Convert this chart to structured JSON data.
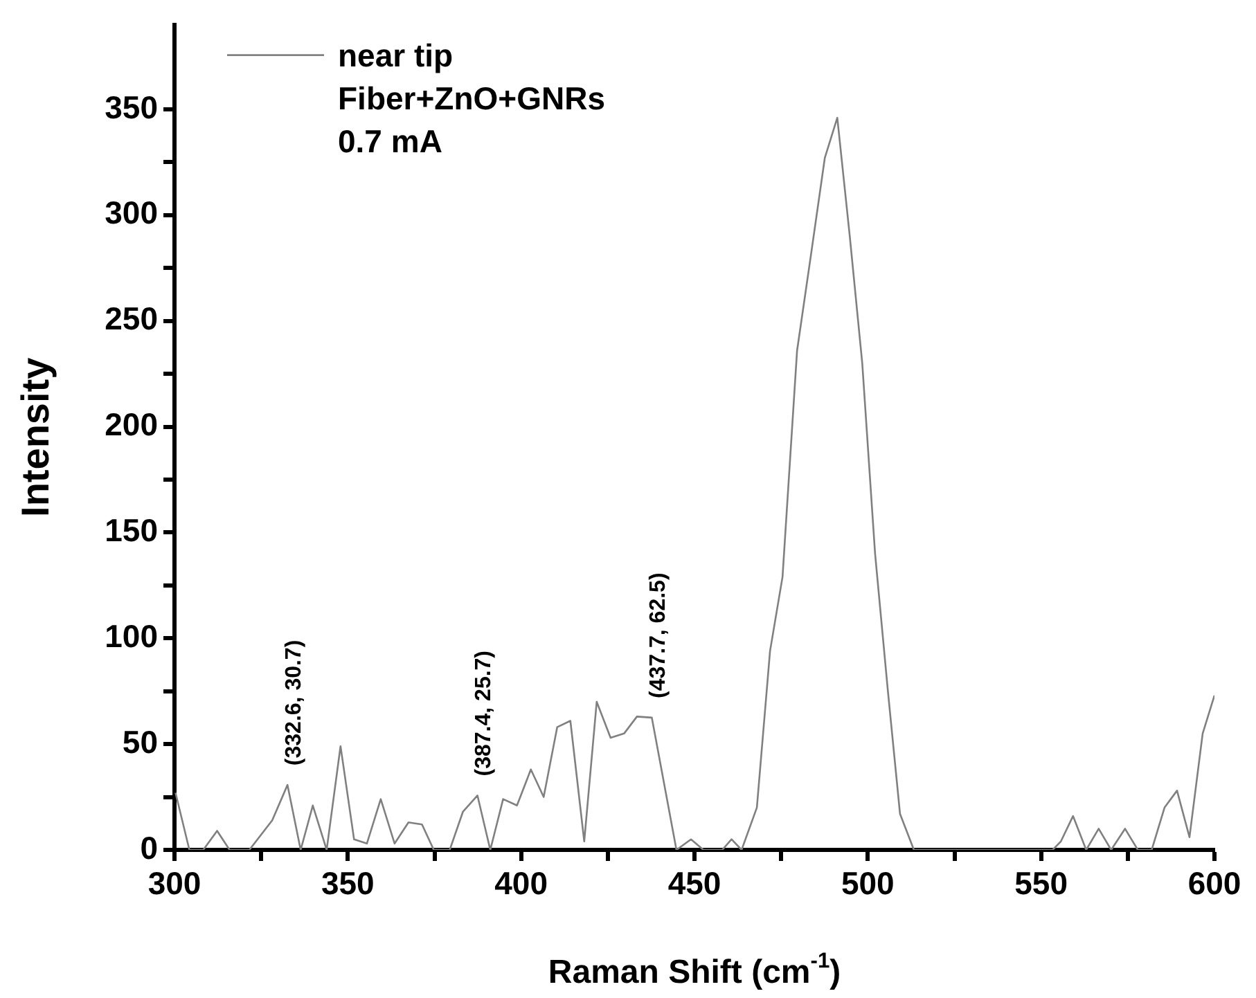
{
  "chart_data": {
    "type": "line",
    "xlabel": "Raman Shift (cm$^{-1}$)",
    "ylabel": "Intensity",
    "xlim": [
      300,
      600
    ],
    "ylim": [
      0,
      390
    ],
    "xticks": [
      300,
      {
        "value": 325,
        "label": null
      },
      350,
      {
        "value": 375,
        "label": null
      },
      400,
      {
        "value": 425,
        "label": null
      },
      450,
      {
        "value": 475,
        "label": null
      },
      500,
      {
        "value": 525,
        "label": null
      },
      550,
      {
        "value": 575,
        "label": null
      },
      600
    ],
    "yticks": [
      0,
      {
        "value": 25,
        "label": null
      },
      50,
      {
        "value": 75,
        "label": null
      },
      100,
      {
        "value": 125,
        "label": null
      },
      150,
      {
        "value": 175,
        "label": null
      },
      200,
      {
        "value": 225,
        "label": null
      },
      250,
      {
        "value": 275,
        "label": null
      },
      300,
      {
        "value": 325,
        "label": null
      },
      350
    ],
    "series": [
      {
        "name": "near tip",
        "color": "#808080",
        "x": [
          300.3,
          304.3,
          308.3,
          312.3,
          315.9,
          321.6,
          328.2,
          332.6,
          336.4,
          339.9,
          343.9,
          347.9,
          351.8,
          355.5,
          359.5,
          363.5,
          367.5,
          371.4,
          374.8,
          379.4,
          383.2,
          387.4,
          391.1,
          394.8,
          398.8,
          402.8,
          406.5,
          410.4,
          414.2,
          418.2,
          421.8,
          425.8,
          429.7,
          433.4,
          437.7,
          444.8,
          449,
          452.6,
          458,
          460.7,
          463.6,
          468,
          471.8,
          475.4,
          479.6,
          483.5,
          487.6,
          491.2,
          494.8,
          498.4,
          502.1,
          505.8,
          509.3,
          513.3,
          553.3,
          555.7,
          559.2,
          563,
          566.6,
          570.2,
          574.2,
          577.9,
          581.9,
          585.6,
          589.2,
          592.8,
          596.6,
          600
        ],
        "values": [
          27,
          0,
          0,
          9,
          0,
          0,
          14,
          30.7,
          0,
          21,
          0,
          49,
          5,
          3,
          24,
          3,
          13,
          12,
          0,
          0,
          18,
          25.7,
          0,
          24,
          21,
          38,
          25,
          58,
          61,
          4,
          70,
          53,
          55,
          63,
          62.5,
          0,
          5,
          0,
          0,
          5,
          0,
          20,
          94,
          129,
          236,
          280,
          327,
          346,
          290,
          230,
          140,
          75,
          17,
          0,
          0,
          4,
          16,
          0,
          10,
          0,
          10,
          0,
          0,
          20,
          28,
          6,
          55,
          73
        ]
      }
    ],
    "annotations": [
      "Fiber+ZnO+GNRs",
      "0.7 mA",
      {
        "text": "(332.6, 30.7)",
        "x": 332.6,
        "y": 30.7
      },
      {
        "text": "(387.4, 25.7)",
        "x": 387.4,
        "y": 25.7
      },
      {
        "text": "(437.7, 62.5)",
        "x": 437.7,
        "y": 62.5
      }
    ],
    "legend": "top left"
  }
}
